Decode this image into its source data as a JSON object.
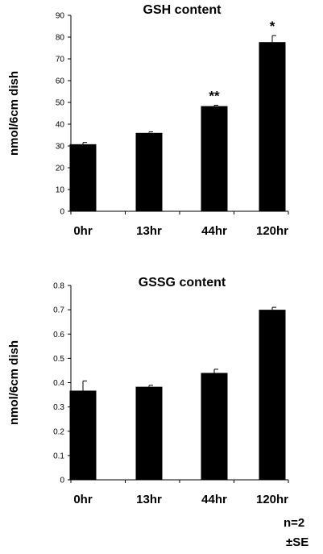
{
  "chart_data": [
    {
      "type": "bar",
      "title": "GSH content",
      "xlabel": "",
      "ylabel": "nmol/6cm dish",
      "categories": [
        "0hr",
        "13hr",
        "44hr",
        "120hr"
      ],
      "values": [
        30.8,
        36.0,
        48.3,
        77.7
      ],
      "errors": [
        0.8,
        0.5,
        0.4,
        3.0
      ],
      "annotations": [
        "",
        "",
        "**",
        "*"
      ],
      "ylim": [
        0,
        90
      ],
      "yticks": [
        "0",
        "10",
        "20",
        "30",
        "40",
        "50",
        "60",
        "70",
        "80",
        "90"
      ],
      "grid": false,
      "bar_color": "#000000"
    },
    {
      "type": "bar",
      "title": "GSSG content",
      "xlabel": "",
      "ylabel": "nmol/6cm dish",
      "categories": [
        "0hr",
        "13hr",
        "44hr",
        "120hr"
      ],
      "values": [
        0.367,
        0.383,
        0.44,
        0.7
      ],
      "errors": [
        0.04,
        0.006,
        0.015,
        0.01
      ],
      "annotations": [
        "",
        "",
        "",
        ""
      ],
      "ylim": [
        0,
        0.8
      ],
      "yticks": [
        "0",
        "0.1",
        "0.2",
        "0.3",
        "0.4",
        "0.5",
        "0.6",
        "0.7",
        "0.8"
      ],
      "grid": false,
      "bar_color": "#000000"
    }
  ],
  "notes": {
    "n": "n=2",
    "se": "±SE"
  }
}
